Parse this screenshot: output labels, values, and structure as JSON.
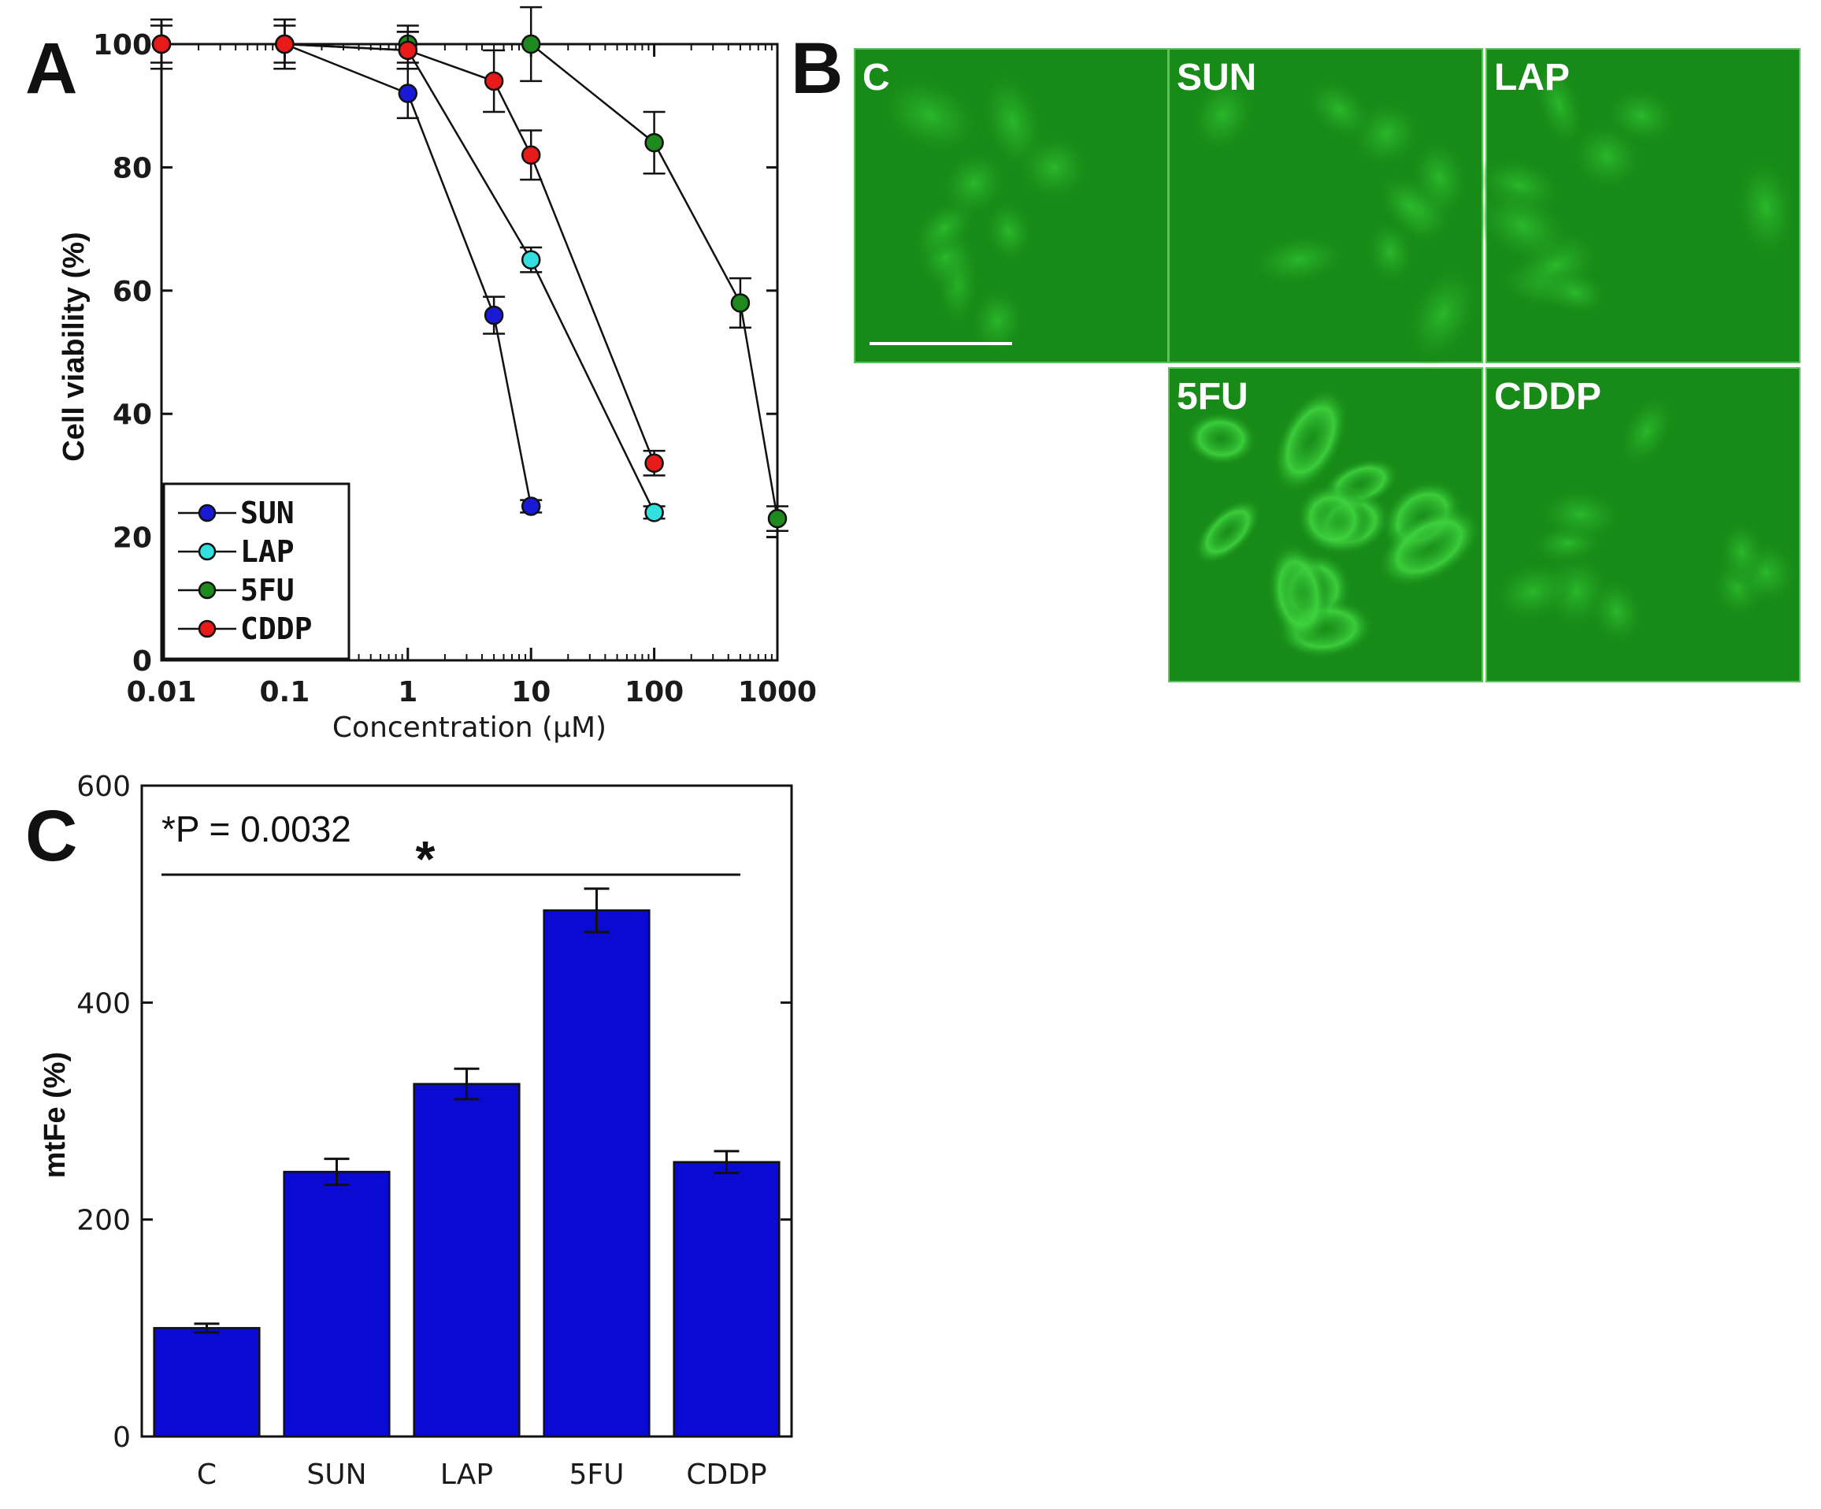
{
  "panels": {
    "a_letter": "A",
    "b_letter": "B",
    "c_letter": "C"
  },
  "chart_data": [
    {
      "type": "line",
      "panel": "A",
      "title": "",
      "xlabel": "Concentration (µM)",
      "ylabel": "Cell viability (%)",
      "xscale": "log",
      "xlim": [
        0.01,
        1000
      ],
      "ylim": [
        0,
        100
      ],
      "x_tick_labels": [
        "0.01",
        "0.1",
        "1",
        "10",
        "100",
        "1000"
      ],
      "x_tick_values": [
        0.01,
        0.1,
        1,
        10,
        100,
        1000
      ],
      "y_tick_values": [
        0,
        20,
        40,
        60,
        80,
        100
      ],
      "y_tick_labels": [
        "0",
        "20",
        "40",
        "60",
        "80",
        "100"
      ],
      "legend_position": "bottom-left",
      "series": [
        {
          "name": "SUN",
          "color": "#1a1ad6",
          "x": [
            0.01,
            0.1,
            1,
            5,
            10
          ],
          "y": [
            100,
            100,
            92,
            56,
            25
          ],
          "err": [
            4,
            4,
            4,
            3,
            1
          ]
        },
        {
          "name": "LAP",
          "color": "#33e0e0",
          "x": [
            0.01,
            0.1,
            1,
            10,
            100
          ],
          "y": [
            100,
            100,
            99,
            65,
            24
          ],
          "err": [
            4,
            4,
            3,
            2,
            1
          ]
        },
        {
          "name": "5FU",
          "color": "#1e8a1e",
          "x": [
            0.01,
            0.1,
            1,
            10,
            100,
            500,
            1000
          ],
          "y": [
            100,
            100,
            100,
            100,
            84,
            58,
            23
          ],
          "err": [
            3,
            3,
            3,
            6,
            5,
            4,
            2
          ]
        },
        {
          "name": "CDDP",
          "color": "#e81a1a",
          "x": [
            0.01,
            0.1,
            1,
            5,
            10,
            100
          ],
          "y": [
            100,
            100,
            99,
            94,
            82,
            32
          ],
          "err": [
            4,
            4,
            3,
            5,
            4,
            2
          ]
        }
      ]
    },
    {
      "type": "bar",
      "panel": "C",
      "title": "",
      "xlabel": "",
      "ylabel": "mtFe (%)",
      "ylim": [
        0,
        600
      ],
      "y_tick_values": [
        0,
        200,
        400,
        600
      ],
      "y_tick_labels": [
        "0",
        "200",
        "400",
        "600"
      ],
      "categories": [
        "C",
        "SUN",
        "LAP",
        "5FU",
        "CDDP"
      ],
      "values": [
        100,
        244,
        325,
        485,
        253
      ],
      "errors": [
        4,
        12,
        14,
        20,
        10
      ],
      "bar_color": "#0a0ad2",
      "annotation": "*P = 0.0032",
      "annotation_p_label": "P",
      "annotation_value": "= 0.0032",
      "significance_marker": "*"
    }
  ],
  "micrographs": {
    "labels": [
      "C",
      "SUN",
      "LAP",
      "5FU",
      "CDDP"
    ],
    "scale_bar": true,
    "color": "#178a17"
  }
}
